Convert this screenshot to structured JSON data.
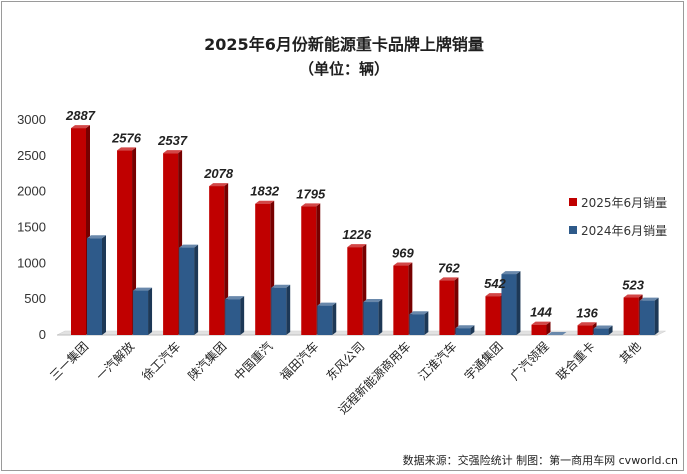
{
  "chart_data": {
    "type": "bar",
    "title": "2025年6月份新能源重卡品牌上牌销量",
    "subtitle": "（单位：辆）",
    "categories": [
      "三一集团",
      "一汽解放",
      "徐工汽车",
      "陕汽集团",
      "中国重汽",
      "福田汽车",
      "东风公司",
      "远程新能源商用车",
      "江淮汽车",
      "宇通集团",
      "广汽领程",
      "联合重卡",
      "其他"
    ],
    "series": [
      {
        "name": "2025年6月销量",
        "color": "#c00000",
        "values": [
          2887,
          2576,
          2537,
          2078,
          1832,
          1795,
          1226,
          969,
          762,
          542,
          144,
          136,
          523
        ]
      },
      {
        "name": "2024年6月销量",
        "color": "#2e5a8a",
        "values": [
          1350,
          620,
          1220,
          500,
          660,
          410,
          460,
          290,
          95,
          850,
          0,
          90,
          480
        ]
      }
    ],
    "data_labels": [
      "2887",
      "2576",
      "2537",
      "2078",
      "1832",
      "1795",
      "1226",
      "969",
      "762",
      "542",
      "144",
      "136",
      "523"
    ],
    "y_ticks": [
      "0",
      "500",
      "1000",
      "1500",
      "2000",
      "2500",
      "3000"
    ],
    "ylim": [
      0,
      3000
    ],
    "legend_position": "right",
    "grid": false,
    "source": "数据来源：交强险统计  制图：第一商用车网 cvworld.cn"
  }
}
